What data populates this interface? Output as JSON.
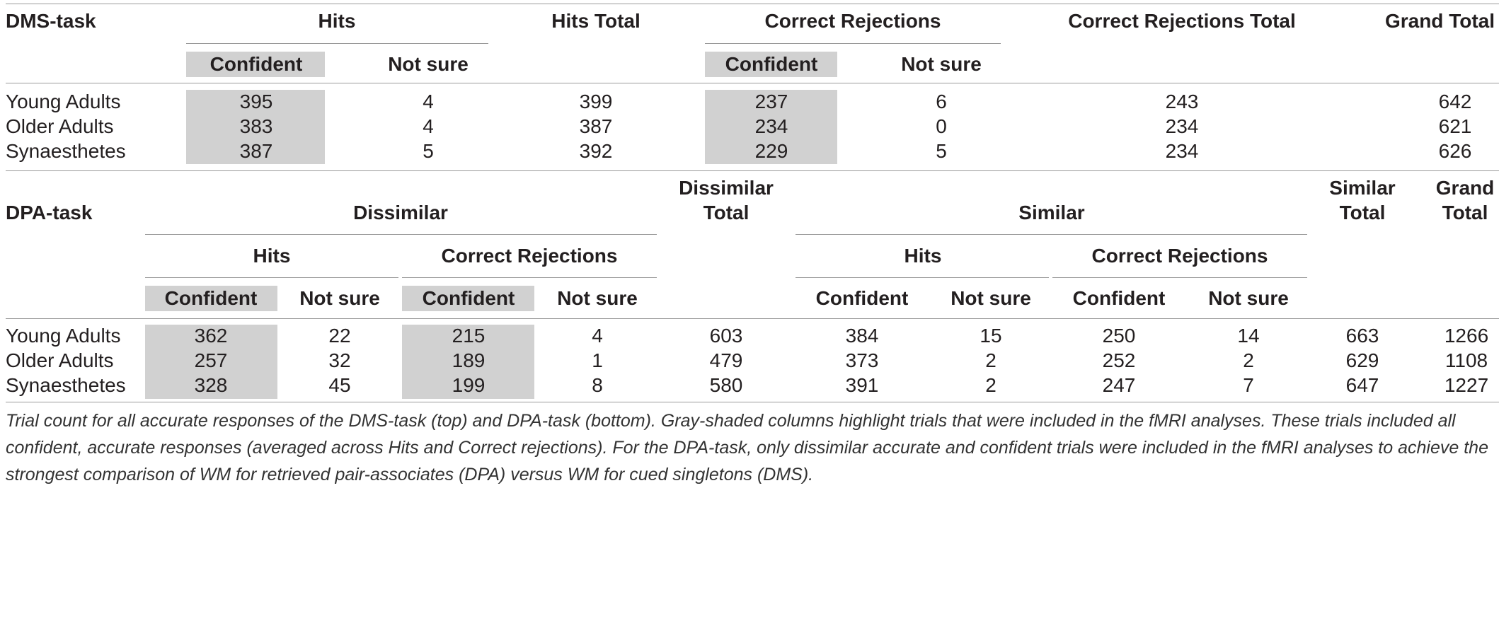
{
  "dms": {
    "title": "DMS-task",
    "headers": {
      "hits": "Hits",
      "hits_total": "Hits Total",
      "correct_rejections": "Correct Rejections",
      "cr_total": "Correct Rejections Total",
      "grand_total": "Grand Total",
      "confident": "Confident",
      "not_sure": "Not sure"
    },
    "rows": [
      {
        "group": "Young Adults",
        "hits_conf": "395",
        "hits_ns": "4",
        "hits_total": "399",
        "cr_conf": "237",
        "cr_ns": "6",
        "cr_total": "243",
        "grand_total": "642"
      },
      {
        "group": "Older Adults",
        "hits_conf": "383",
        "hits_ns": "4",
        "hits_total": "387",
        "cr_conf": "234",
        "cr_ns": "0",
        "cr_total": "234",
        "grand_total": "621"
      },
      {
        "group": "Synaesthetes",
        "hits_conf": "387",
        "hits_ns": "5",
        "hits_total": "392",
        "cr_conf": "229",
        "cr_ns": "5",
        "cr_total": "234",
        "grand_total": "626"
      }
    ]
  },
  "dpa": {
    "title": "DPA-task",
    "headers": {
      "dissimilar": "Dissimilar",
      "dissimilar_total_1": "Dissimilar",
      "dissimilar_total_2": "Total",
      "similar": "Similar",
      "similar_total_1": "Similar",
      "similar_total_2": "Total",
      "grand_total_1": "Grand",
      "grand_total_2": "Total",
      "hits": "Hits",
      "correct_rejections": "Correct Rejections",
      "confident": "Confident",
      "not_sure": "Not sure"
    },
    "rows": [
      {
        "group": "Young Adults",
        "d_hits_conf": "362",
        "d_hits_ns": "22",
        "d_cr_conf": "215",
        "d_cr_ns": "4",
        "d_total": "603",
        "s_hits_conf": "384",
        "s_hits_ns": "15",
        "s_cr_conf": "250",
        "s_cr_ns": "14",
        "s_total": "663",
        "grand_total": "1266"
      },
      {
        "group": "Older Adults",
        "d_hits_conf": "257",
        "d_hits_ns": "32",
        "d_cr_conf": "189",
        "d_cr_ns": "1",
        "d_total": "479",
        "s_hits_conf": "373",
        "s_hits_ns": "2",
        "s_cr_conf": "252",
        "s_cr_ns": "2",
        "s_total": "629",
        "grand_total": "1108"
      },
      {
        "group": "Synaesthetes",
        "d_hits_conf": "328",
        "d_hits_ns": "45",
        "d_cr_conf": "199",
        "d_cr_ns": "8",
        "d_total": "580",
        "s_hits_conf": "391",
        "s_hits_ns": "2",
        "s_cr_conf": "247",
        "s_cr_ns": "7",
        "s_total": "647",
        "grand_total": "1227"
      }
    ]
  },
  "caption": "Trial count for all accurate responses of the DMS-task (top) and DPA-task (bottom). Gray-shaded columns highlight trials that were included in the fMRI analyses. These trials included all confident, accurate responses (averaged across Hits and Correct rejections). For the DPA-task, only dissimilar accurate and confident trials were included in the fMRI analyses to achieve the strongest comparison of WM for retrieved pair-associates (DPA) versus WM for cued singletons (DMS).",
  "colors": {
    "shade": "#d1d1d1",
    "rule": "#9a9a9a",
    "text": "#231f20"
  }
}
